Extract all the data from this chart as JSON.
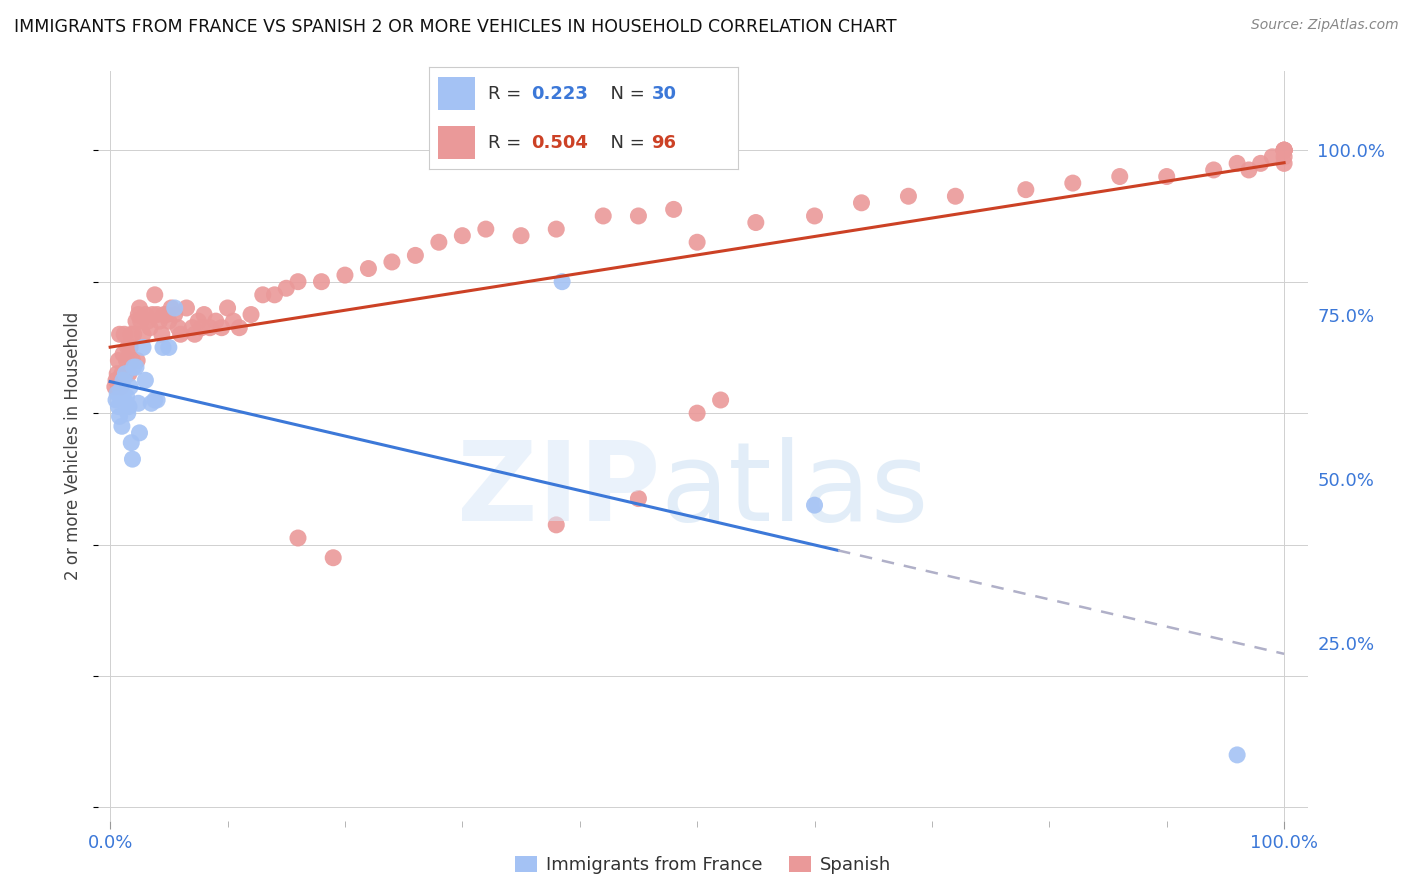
{
  "title": "IMMIGRANTS FROM FRANCE VS SPANISH 2 OR MORE VEHICLES IN HOUSEHOLD CORRELATION CHART",
  "source": "Source: ZipAtlas.com",
  "ylabel": "2 or more Vehicles in Household",
  "r_france": 0.223,
  "n_france": 30,
  "r_spanish": 0.504,
  "n_spanish": 96,
  "blue_color": "#a4c2f4",
  "pink_color": "#ea9999",
  "blue_line_color": "#3c78d8",
  "pink_line_color": "#cc4125",
  "dashed_color": "#b0b0c8",
  "france_x": [
    0.005,
    0.006,
    0.007,
    0.008,
    0.009,
    0.01,
    0.011,
    0.012,
    0.013,
    0.014,
    0.015,
    0.016,
    0.017,
    0.018,
    0.019,
    0.02,
    0.022,
    0.024,
    0.025,
    0.028,
    0.03,
    0.035,
    0.038,
    0.04,
    0.045,
    0.05,
    0.055,
    0.385,
    0.6,
    0.96
  ],
  "france_y": [
    0.62,
    0.63,
    0.61,
    0.595,
    0.635,
    0.58,
    0.65,
    0.62,
    0.66,
    0.625,
    0.6,
    0.61,
    0.64,
    0.555,
    0.53,
    0.67,
    0.67,
    0.615,
    0.57,
    0.7,
    0.65,
    0.615,
    0.62,
    0.62,
    0.7,
    0.7,
    0.76,
    0.8,
    0.46,
    0.08
  ],
  "spanish_x": [
    0.004,
    0.005,
    0.006,
    0.007,
    0.008,
    0.009,
    0.01,
    0.011,
    0.012,
    0.013,
    0.014,
    0.015,
    0.016,
    0.017,
    0.018,
    0.019,
    0.02,
    0.022,
    0.023,
    0.024,
    0.025,
    0.026,
    0.028,
    0.03,
    0.032,
    0.034,
    0.036,
    0.038,
    0.04,
    0.042,
    0.044,
    0.046,
    0.048,
    0.05,
    0.052,
    0.055,
    0.058,
    0.06,
    0.065,
    0.07,
    0.072,
    0.075,
    0.078,
    0.08,
    0.085,
    0.09,
    0.095,
    0.1,
    0.105,
    0.11,
    0.12,
    0.13,
    0.14,
    0.15,
    0.16,
    0.18,
    0.2,
    0.22,
    0.24,
    0.26,
    0.28,
    0.3,
    0.32,
    0.35,
    0.38,
    0.42,
    0.45,
    0.48,
    0.5,
    0.55,
    0.6,
    0.64,
    0.68,
    0.72,
    0.78,
    0.82,
    0.86,
    0.9,
    0.94,
    0.96,
    0.97,
    0.98,
    0.99,
    1.0,
    1.0,
    1.0,
    1.0,
    1.0,
    1.0,
    1.0,
    0.5,
    0.52,
    0.45,
    0.38,
    0.19,
    0.16
  ],
  "spanish_y": [
    0.64,
    0.65,
    0.66,
    0.68,
    0.72,
    0.64,
    0.66,
    0.69,
    0.72,
    0.66,
    0.68,
    0.7,
    0.66,
    0.7,
    0.72,
    0.68,
    0.72,
    0.74,
    0.68,
    0.75,
    0.76,
    0.74,
    0.72,
    0.75,
    0.74,
    0.73,
    0.75,
    0.78,
    0.75,
    0.74,
    0.72,
    0.75,
    0.75,
    0.74,
    0.76,
    0.75,
    0.73,
    0.72,
    0.76,
    0.73,
    0.72,
    0.74,
    0.73,
    0.75,
    0.73,
    0.74,
    0.73,
    0.76,
    0.74,
    0.73,
    0.75,
    0.78,
    0.78,
    0.79,
    0.8,
    0.8,
    0.81,
    0.82,
    0.83,
    0.84,
    0.86,
    0.87,
    0.88,
    0.87,
    0.88,
    0.9,
    0.9,
    0.91,
    0.86,
    0.89,
    0.9,
    0.92,
    0.93,
    0.93,
    0.94,
    0.95,
    0.96,
    0.96,
    0.97,
    0.98,
    0.97,
    0.98,
    0.99,
    1.0,
    1.0,
    1.0,
    0.99,
    0.98,
    1.0,
    1.0,
    0.6,
    0.62,
    0.47,
    0.43,
    0.38,
    0.41
  ],
  "xlim": [
    -0.01,
    1.02
  ],
  "ylim": [
    -0.02,
    1.12
  ],
  "yticks": [
    0.25,
    0.5,
    0.75,
    1.0
  ],
  "ytick_labels": [
    "25.0%",
    "50.0%",
    "75.0%",
    "100.0%"
  ]
}
